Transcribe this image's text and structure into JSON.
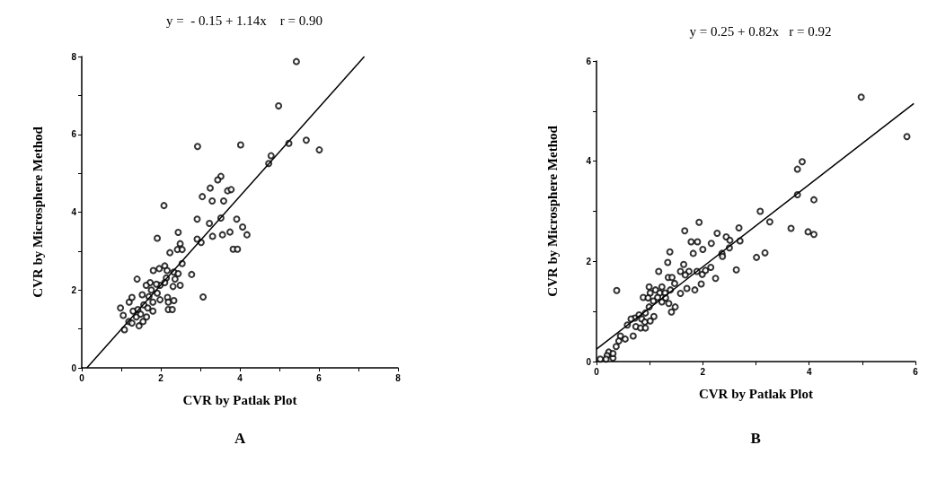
{
  "chart_data": [
    {
      "type": "scatter",
      "title": "y =  - 0.15 + 1.14x    r = 0.90",
      "xlabel": "CVR by Patlak Plot",
      "ylabel": "CVR by Microsphere Method",
      "annotations": [
        "A"
      ],
      "grid": false,
      "xlim": [
        0,
        8
      ],
      "ylim": [
        0,
        8
      ],
      "xticks": [
        0,
        {
          "value": 1,
          "label": null
        },
        2,
        {
          "value": 3,
          "label": null
        },
        4,
        {
          "value": 5,
          "label": null
        },
        6,
        {
          "value": 7,
          "label": null
        },
        8
      ],
      "yticks": [
        0,
        {
          "value": 1,
          "label": null
        },
        2,
        {
          "value": 3,
          "label": null
        },
        4,
        {
          "value": 5,
          "label": null
        },
        6,
        {
          "value": 7,
          "label": null
        },
        8
      ],
      "series": [
        {
          "marker": "circle",
          "color": "#000000",
          "x": [
            5.43,
            4.98,
            5.24,
            5.68,
            6.01,
            4.79,
            4.73,
            2.93,
            4.02,
            2.08,
            3.52,
            3.44,
            3.25,
            3.05,
            3.3,
            3.59,
            3.69,
            3.78,
            2.92,
            3.52,
            3.23,
            3.92,
            4.07,
            4.18,
            3.31,
            3.56,
            3.75,
            2.92,
            3.02,
            3.83,
            3.94,
            2.44,
            1.91,
            2.49,
            2.42,
            2.54,
            2.23,
            2.54,
            2.78,
            3.07,
            1.4,
            1.81,
            1.96,
            2.1,
            2.16,
            2.33,
            2.44,
            2.36,
            2.49,
            2.31,
            2.14,
            2.1,
            1.98,
            1.91,
            1.73,
            1.63,
            1.53,
            1.7,
            1.8,
            1.98,
            2.17,
            2.19,
            2.33,
            2.19,
            2.29,
            1.2,
            1.27,
            0.98,
            1.05,
            1.08,
            1.3,
            1.42,
            1.57,
            1.67,
            1.8,
            1.19,
            1.27,
            1.45,
            1.55,
            1.64,
            1.38,
            1.49,
            1.76,
            1.89
          ],
          "values": [
            7.87,
            6.73,
            5.77,
            5.85,
            5.6,
            5.45,
            5.25,
            5.69,
            5.73,
            4.17,
            4.92,
            4.83,
            4.62,
            4.4,
            4.29,
            4.29,
            4.55,
            4.58,
            3.82,
            3.85,
            3.71,
            3.82,
            3.62,
            3.42,
            3.38,
            3.42,
            3.49,
            3.31,
            3.22,
            3.05,
            3.05,
            3.48,
            3.33,
            3.19,
            3.04,
            3.04,
            2.96,
            2.68,
            2.4,
            1.82,
            2.28,
            2.5,
            2.55,
            2.62,
            2.5,
            2.46,
            2.42,
            2.28,
            2.12,
            2.09,
            2.31,
            2.19,
            2.12,
            1.92,
            2.19,
            2.12,
            1.88,
            1.83,
            1.69,
            1.75,
            1.81,
            1.69,
            1.73,
            1.5,
            1.5,
            1.69,
            1.81,
            1.54,
            1.35,
            0.98,
            1.46,
            1.5,
            1.62,
            1.54,
            1.46,
            1.19,
            1.15,
            1.08,
            1.19,
            1.31,
            1.31,
            1.38,
            2.0,
            2.15
          ]
        },
        {
          "type": "line",
          "marker": "none",
          "color": "#000000",
          "x": [
            0.13,
            7.15
          ],
          "values": [
            0,
            8.0
          ]
        }
      ]
    },
    {
      "type": "scatter",
      "title": "y = 0.25 + 0.82x   r = 0.92",
      "xlabel": "CVR by Patlak Plot",
      "ylabel": "CVR by Microsphere Method",
      "annotations": [
        "B"
      ],
      "grid": false,
      "xlim": [
        0,
        6
      ],
      "ylim": [
        0,
        6
      ],
      "xticks": [
        0,
        {
          "value": 1,
          "label": null
        },
        2,
        {
          "value": 3,
          "label": null
        },
        4,
        {
          "value": 5,
          "label": null
        },
        6
      ],
      "yticks": [
        0,
        {
          "value": 1,
          "label": null
        },
        2,
        {
          "value": 3,
          "label": null
        },
        4,
        {
          "value": 5,
          "label": null
        },
        6
      ],
      "series": [
        {
          "marker": "circle",
          "color": "#000000",
          "x": [
            0.38,
            1.66,
            1.93,
            2.68,
            2.27,
            1.78,
            1.9,
            1.82,
            2.0,
            2.16,
            1.38,
            2.44,
            2.51,
            2.7,
            2.36,
            2.5,
            2.37,
            1.34,
            1.17,
            1.35,
            1.42,
            1.64,
            1.58,
            1.74,
            1.67,
            1.89,
            1.99,
            2.15,
            2.05,
            2.24,
            2.63,
            1.58,
            1.7,
            1.85,
            1.97,
            0.99,
            1.01,
            1.11,
            1.23,
            1.19,
            1.29,
            1.39,
            1.47,
            0.88,
            0.97,
            1.07,
            1.15,
            1.23,
            1.3,
            1.36,
            1.48,
            1.41,
            0.99,
            0.92,
            1.08,
            0.8,
            0.72,
            0.85,
            0.91,
            0.74,
            0.83,
            0.92,
            1.01,
            0.65,
            0.58,
            0.45,
            0.54,
            0.69,
            0.42,
            0.37,
            0.23,
            0.2,
            0.31,
            0.18,
            0.07,
            0.31,
            4.98,
            5.84,
            3.78,
            3.87,
            3.78,
            4.09,
            3.08,
            3.26,
            3.66,
            3.98,
            4.09,
            3.01,
            3.17
          ],
          "values": [
            1.42,
            2.61,
            2.78,
            2.67,
            2.56,
            2.39,
            2.39,
            2.16,
            2.24,
            2.36,
            2.19,
            2.49,
            2.42,
            2.41,
            2.16,
            2.27,
            2.1,
            1.98,
            1.8,
            1.68,
            1.68,
            1.94,
            1.8,
            1.8,
            1.73,
            1.8,
            1.74,
            1.88,
            1.82,
            1.66,
            1.83,
            1.36,
            1.46,
            1.43,
            1.55,
            1.49,
            1.37,
            1.43,
            1.49,
            1.37,
            1.37,
            1.43,
            1.56,
            1.28,
            1.27,
            1.21,
            1.28,
            1.19,
            1.27,
            1.16,
            1.09,
            0.99,
            1.09,
            0.97,
            0.9,
            0.93,
            0.87,
            0.85,
            0.79,
            0.7,
            0.67,
            0.67,
            0.81,
            0.85,
            0.73,
            0.51,
            0.45,
            0.51,
            0.41,
            0.3,
            0.19,
            0.12,
            0.07,
            0.05,
            0.05,
            0.16,
            5.28,
            4.49,
            3.84,
            3.99,
            3.33,
            3.23,
            3.0,
            2.79,
            2.66,
            2.59,
            2.54,
            2.08,
            2.17
          ]
        },
        {
          "type": "line",
          "marker": "none",
          "color": "#000000",
          "x": [
            0,
            5.97
          ],
          "values": [
            0.25,
            5.15
          ]
        }
      ]
    }
  ]
}
